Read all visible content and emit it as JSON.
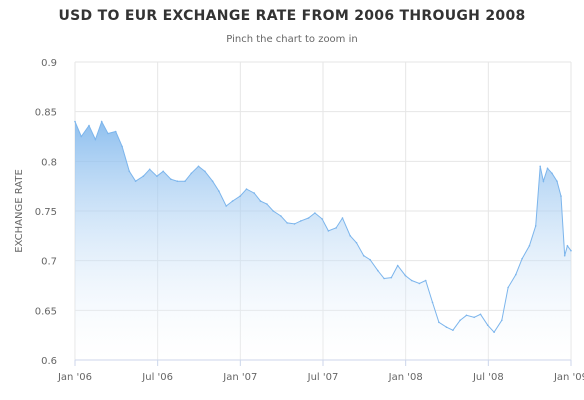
{
  "chart_data": {
    "type": "area",
    "title": "USD TO EUR EXCHANGE RATE FROM 2006 THROUGH 2008",
    "subtitle": "Pinch the chart to zoom in",
    "xlabel": "",
    "ylabel": "EXCHANGE RATE",
    "x_tick_labels": [
      "Jan '06",
      "Jul '06",
      "Jan '07",
      "Jul '07",
      "Jan '08",
      "Jul '08",
      "Jan '09"
    ],
    "y_ticks": [
      0.6,
      0.65,
      0.7,
      0.75,
      0.8,
      0.85,
      0.9
    ],
    "ylim": [
      0.6,
      0.9
    ],
    "xlim": [
      "2006-01-01",
      "2009-01-01"
    ],
    "grid": true,
    "colors": {
      "fill_top": "#7cb5ec",
      "fill_bottom": "#ffffff",
      "line": "#7cb5ec"
    },
    "series": [
      {
        "values": [
          [
            "2006-01-01",
            0.84
          ],
          [
            "2006-01-15",
            0.825
          ],
          [
            "2006-02-01",
            0.836
          ],
          [
            "2006-02-15",
            0.822
          ],
          [
            "2006-03-01",
            0.84
          ],
          [
            "2006-03-15",
            0.828
          ],
          [
            "2006-04-01",
            0.83
          ],
          [
            "2006-04-15",
            0.815
          ],
          [
            "2006-05-01",
            0.79
          ],
          [
            "2006-05-15",
            0.78
          ],
          [
            "2006-06-01",
            0.785
          ],
          [
            "2006-06-15",
            0.792
          ],
          [
            "2006-07-01",
            0.785
          ],
          [
            "2006-07-15",
            0.79
          ],
          [
            "2006-08-01",
            0.782
          ],
          [
            "2006-08-15",
            0.78
          ],
          [
            "2006-09-01",
            0.78
          ],
          [
            "2006-09-15",
            0.788
          ],
          [
            "2006-10-01",
            0.795
          ],
          [
            "2006-10-15",
            0.79
          ],
          [
            "2006-11-01",
            0.78
          ],
          [
            "2006-11-15",
            0.77
          ],
          [
            "2006-12-01",
            0.755
          ],
          [
            "2006-12-15",
            0.76
          ],
          [
            "2007-01-01",
            0.765
          ],
          [
            "2007-01-15",
            0.772
          ],
          [
            "2007-02-01",
            0.768
          ],
          [
            "2007-02-15",
            0.76
          ],
          [
            "2007-03-01",
            0.757
          ],
          [
            "2007-03-15",
            0.75
          ],
          [
            "2007-04-01",
            0.745
          ],
          [
            "2007-04-15",
            0.738
          ],
          [
            "2007-05-01",
            0.737
          ],
          [
            "2007-05-15",
            0.74
          ],
          [
            "2007-06-01",
            0.743
          ],
          [
            "2007-06-15",
            0.748
          ],
          [
            "2007-07-01",
            0.742
          ],
          [
            "2007-07-15",
            0.73
          ],
          [
            "2007-08-01",
            0.733
          ],
          [
            "2007-08-15",
            0.743
          ],
          [
            "2007-09-01",
            0.725
          ],
          [
            "2007-09-15",
            0.718
          ],
          [
            "2007-10-01",
            0.705
          ],
          [
            "2007-10-15",
            0.701
          ],
          [
            "2007-11-01",
            0.69
          ],
          [
            "2007-11-15",
            0.682
          ],
          [
            "2007-12-01",
            0.683
          ],
          [
            "2007-12-15",
            0.695
          ],
          [
            "2008-01-01",
            0.685
          ],
          [
            "2008-01-15",
            0.68
          ],
          [
            "2008-02-01",
            0.677
          ],
          [
            "2008-02-15",
            0.68
          ],
          [
            "2008-03-01",
            0.658
          ],
          [
            "2008-03-15",
            0.638
          ],
          [
            "2008-04-01",
            0.633
          ],
          [
            "2008-04-15",
            0.63
          ],
          [
            "2008-05-01",
            0.64
          ],
          [
            "2008-05-15",
            0.645
          ],
          [
            "2008-06-01",
            0.643
          ],
          [
            "2008-06-15",
            0.646
          ],
          [
            "2008-07-01",
            0.635
          ],
          [
            "2008-07-15",
            0.628
          ],
          [
            "2008-08-01",
            0.64
          ],
          [
            "2008-08-15",
            0.673
          ],
          [
            "2008-09-01",
            0.686
          ],
          [
            "2008-09-15",
            0.702
          ],
          [
            "2008-10-01",
            0.715
          ],
          [
            "2008-10-15",
            0.735
          ],
          [
            "2008-10-25",
            0.795
          ],
          [
            "2008-11-01",
            0.78
          ],
          [
            "2008-11-10",
            0.793
          ],
          [
            "2008-11-20",
            0.788
          ],
          [
            "2008-12-01",
            0.78
          ],
          [
            "2008-12-10",
            0.765
          ],
          [
            "2008-12-18",
            0.705
          ],
          [
            "2008-12-24",
            0.715
          ],
          [
            "2009-01-01",
            0.71
          ]
        ]
      }
    ]
  }
}
